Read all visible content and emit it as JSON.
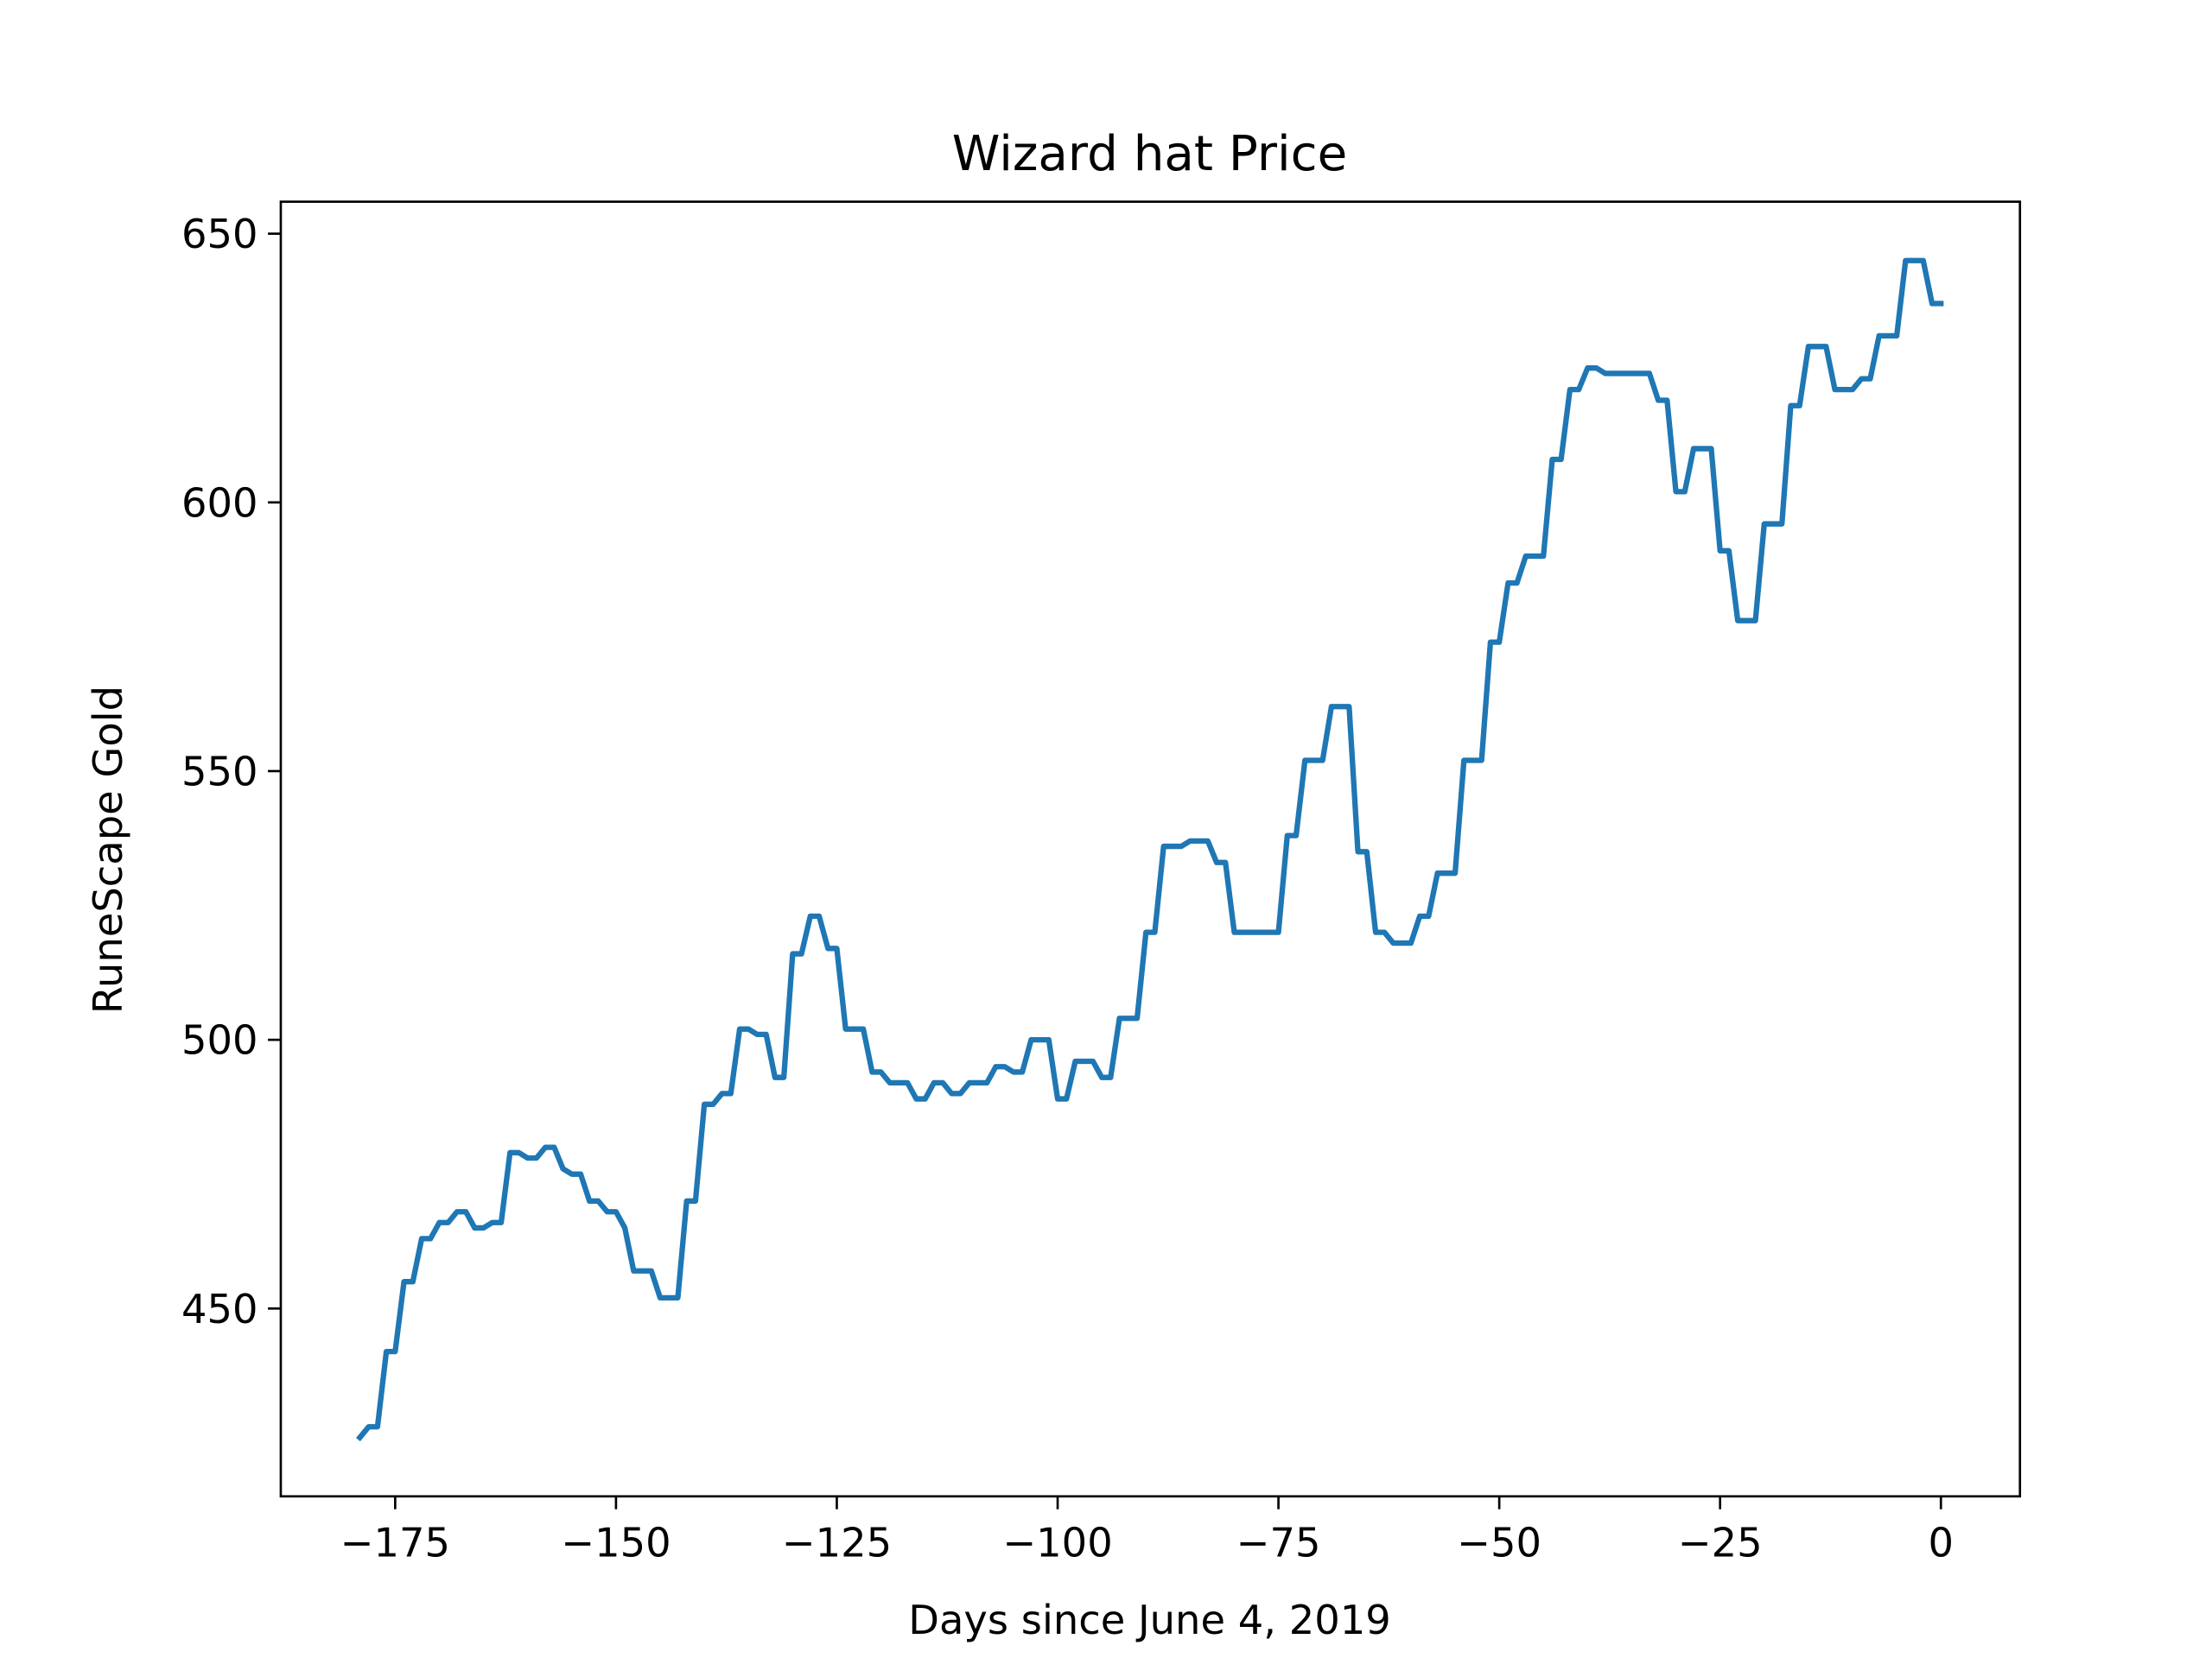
{
  "chart_data": {
    "type": "line",
    "title": "Wizard hat Price",
    "x_label": "Days since June 4, 2019",
    "y_label": "RuneScape Gold",
    "color": "#1f77b4",
    "x": [
      -179,
      -178,
      -177,
      -176,
      -175,
      -174,
      -173,
      -172,
      -171,
      -170,
      -169,
      -168,
      -167,
      -166,
      -165,
      -164,
      -163,
      -162,
      -161,
      -160,
      -159,
      -158,
      -157,
      -156,
      -155,
      -154,
      -153,
      -152,
      -151,
      -150,
      -149,
      -148,
      -147,
      -146,
      -145,
      -144,
      -143,
      -142,
      -141,
      -140,
      -139,
      -138,
      -137,
      -136,
      -135,
      -134,
      -133,
      -132,
      -131,
      -130,
      -129,
      -128,
      -127,
      -126,
      -125,
      -124,
      -123,
      -122,
      -121,
      -120,
      -119,
      -118,
      -117,
      -116,
      -115,
      -114,
      -113,
      -112,
      -111,
      -110,
      -109,
      -108,
      -107,
      -106,
      -105,
      -104,
      -103,
      -102,
      -101,
      -100,
      -99,
      -98,
      -97,
      -96,
      -95,
      -94,
      -93,
      -92,
      -91,
      -90,
      -89,
      -88,
      -87,
      -86,
      -85,
      -84,
      -83,
      -82,
      -81,
      -80,
      -79,
      -78,
      -77,
      -76,
      -75,
      -74,
      -73,
      -72,
      -71,
      -70,
      -69,
      -68,
      -67,
      -66,
      -65,
      -64,
      -63,
      -62,
      -61,
      -60,
      -59,
      -58,
      -57,
      -56,
      -55,
      -54,
      -53,
      -52,
      -51,
      -50,
      -49,
      -48,
      -47,
      -46,
      -45,
      -44,
      -43,
      -42,
      -41,
      -40,
      -39,
      -38,
      -37,
      -36,
      -35,
      -34,
      -33,
      -32,
      -31,
      -30,
      -29,
      -28,
      -27,
      -26,
      -25,
      -24,
      -23,
      -22,
      -21,
      -20,
      -19,
      -18,
      -17,
      -16,
      -15,
      -14,
      -13,
      -12,
      -11,
      -10,
      -9,
      -8,
      -7,
      -6,
      -5,
      -4,
      -3,
      -2,
      -1,
      0
    ],
    "values": [
      426,
      428,
      428,
      442,
      442,
      455,
      455,
      463,
      463,
      466,
      466,
      468,
      468,
      465,
      465,
      466,
      466,
      479,
      479,
      478,
      478,
      480,
      480,
      476,
      475,
      475,
      470,
      470,
      468,
      468,
      465,
      457,
      457,
      457,
      452,
      452,
      452,
      470,
      470,
      488,
      488,
      490,
      490,
      502,
      502,
      501,
      501,
      493,
      493,
      516,
      516,
      523,
      523,
      517,
      517,
      502,
      502,
      502,
      494,
      494,
      492,
      492,
      492,
      489,
      489,
      492,
      492,
      490,
      490,
      492,
      492,
      492,
      495,
      495,
      494,
      494,
      500,
      500,
      500,
      489,
      489,
      496,
      496,
      496,
      493,
      493,
      504,
      504,
      504,
      520,
      520,
      536,
      536,
      536,
      537,
      537,
      537,
      533,
      533,
      520,
      520,
      520,
      520,
      520,
      520,
      538,
      538,
      552,
      552,
      552,
      562,
      562,
      562,
      535,
      535,
      520,
      520,
      518,
      518,
      518,
      523,
      523,
      531,
      531,
      531,
      552,
      552,
      552,
      574,
      574,
      585,
      585,
      590,
      590,
      590,
      608,
      608,
      621,
      621,
      625,
      625,
      624,
      624,
      624,
      624,
      624,
      624,
      619,
      619,
      602,
      602,
      610,
      610,
      610,
      591,
      591,
      578,
      578,
      578,
      596,
      596,
      596,
      618,
      618,
      629,
      629,
      629,
      621,
      621,
      621,
      623,
      623,
      631,
      631,
      631,
      645,
      645,
      645,
      637,
      637
    ],
    "xlim": [
      -187.95,
      8.95
    ],
    "ylim": [
      415.05,
      655.95
    ],
    "xticks": [
      {
        "value": -175,
        "label": "−175"
      },
      {
        "value": -150,
        "label": "−150"
      },
      {
        "value": -125,
        "label": "−125"
      },
      {
        "value": -100,
        "label": "−100"
      },
      {
        "value": -75,
        "label": "−75"
      },
      {
        "value": -50,
        "label": "−50"
      },
      {
        "value": -25,
        "label": "−25"
      },
      0
    ],
    "yticks": [
      450,
      500,
      550,
      600,
      650
    ]
  }
}
